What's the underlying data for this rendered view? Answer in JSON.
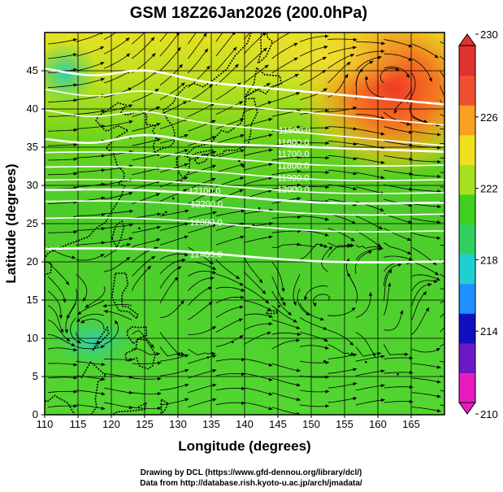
{
  "title": "GSM 18Z26Jan2026 (200.0hPa)",
  "x_axis": {
    "label": "Longitude (degrees)",
    "range": [
      110,
      170
    ],
    "ticks": [
      110,
      115,
      120,
      125,
      130,
      135,
      140,
      145,
      150,
      155,
      160,
      165
    ]
  },
  "y_axis": {
    "label": "Latitude  (degrees)",
    "range": [
      0,
      50
    ],
    "ticks": [
      0,
      5,
      10,
      15,
      20,
      25,
      30,
      35,
      40,
      45
    ]
  },
  "colorbar": {
    "min": 210,
    "max": 230,
    "tick_labels": [
      "210",
      "214",
      "218",
      "222",
      "226",
      "230"
    ],
    "colors": [
      "#e81cbe",
      "#6a18c8",
      "#1010c0",
      "#1e90ff",
      "#20d0d0",
      "#30d060",
      "#40d020",
      "#a8e020",
      "#f0e020",
      "#f8a020",
      "#f05030",
      "#e03030"
    ]
  },
  "contour_labels": [
    {
      "text": "11500.0",
      "lon": 147.5,
      "lat": 36.8
    },
    {
      "text": "11600.0",
      "lon": 147.3,
      "lat": 35.2
    },
    {
      "text": "11700.0",
      "lon": 147.3,
      "lat": 33.7
    },
    {
      "text": "11800.0",
      "lon": 147.3,
      "lat": 32.2
    },
    {
      "text": "11900.0",
      "lon": 147.3,
      "lat": 30.6
    },
    {
      "text": "12000.0",
      "lon": 147.3,
      "lat": 29.1
    },
    {
      "text": "12100.0",
      "lon": 134.0,
      "lat": 28.9
    },
    {
      "text": "12200.0",
      "lon": 134.3,
      "lat": 27.2
    },
    {
      "text": "12300.0",
      "lon": 134.2,
      "lat": 24.8
    },
    {
      "text": "12400.0",
      "lon": 134.2,
      "lat": 20.6
    }
  ],
  "footer": {
    "line1": "Drawing by DCL (https://www.gfd-dennou.org/library/dcl/)",
    "line2": "Data from http://database.rish.kyoto-u.ac.jp/arch/jmadata/"
  }
}
